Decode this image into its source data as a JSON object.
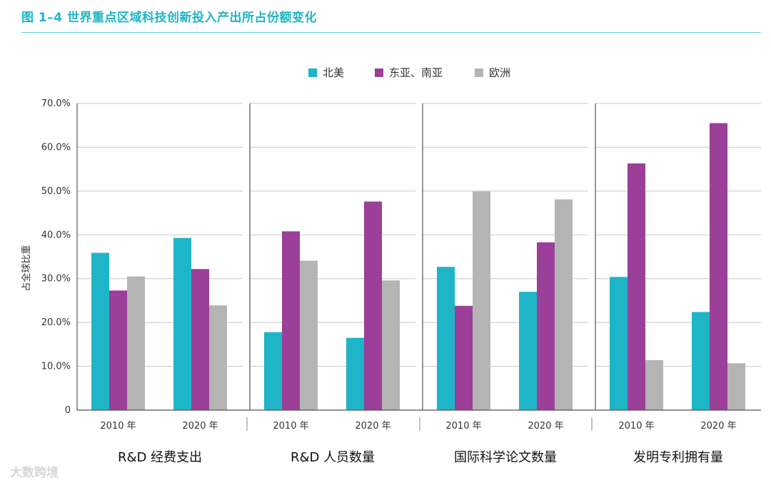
{
  "figure": {
    "title": "图 1–4    世界重点区域科技创新投入产出所占份额变化"
  },
  "watermark": {
    "text": "大数跨境"
  },
  "chart_data": {
    "type": "bar",
    "ylabel": "占全球比重",
    "ylim": [
      0,
      70
    ],
    "ytick_labels": [
      "0",
      "10.0%",
      "20.0%",
      "30.0%",
      "40.0%",
      "50.0%",
      "60.0%",
      "70.0%"
    ],
    "legend_position": "top-center",
    "series": [
      {
        "name": "北美",
        "color": "#1fb5c8"
      },
      {
        "name": "东亚、南亚",
        "color": "#9b3f98"
      },
      {
        "name": "欧洲",
        "color": "#b4b4b4"
      }
    ],
    "panels": [
      {
        "title": "R&D  经费支出",
        "groups": [
          {
            "label": "2010 年",
            "values": [
              35.9,
              27.3,
              30.5
            ]
          },
          {
            "label": "2020 年",
            "values": [
              39.3,
              32.2,
              23.9
            ]
          }
        ]
      },
      {
        "title": "R&D  人员数量",
        "groups": [
          {
            "label": "2010 年",
            "values": [
              17.8,
              40.8,
              34.1
            ]
          },
          {
            "label": "2020 年",
            "values": [
              16.5,
              47.6,
              29.6
            ]
          }
        ]
      },
      {
        "title": "国际科学论文数量",
        "groups": [
          {
            "label": "2010 年",
            "values": [
              32.7,
              23.8,
              49.9
            ]
          },
          {
            "label": "2020 年",
            "values": [
              27.0,
              38.3,
              48.1
            ]
          }
        ]
      },
      {
        "title": "发明专利拥有量",
        "groups": [
          {
            "label": "2010 年",
            "values": [
              30.4,
              56.3,
              11.4
            ]
          },
          {
            "label": "2020 年",
            "values": [
              22.4,
              65.5,
              10.7
            ]
          }
        ]
      }
    ]
  }
}
